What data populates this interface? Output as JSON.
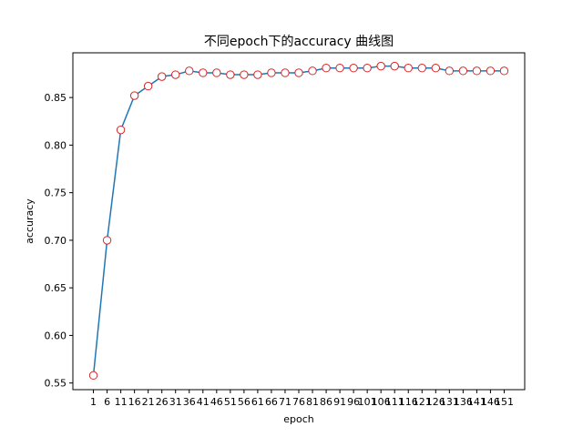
{
  "chart_data": {
    "type": "line",
    "title": "不同epoch下的accuracy 曲线图",
    "xlabel": "epoch",
    "ylabel": "accuracy",
    "x": [
      1,
      6,
      11,
      16,
      21,
      26,
      31,
      36,
      41,
      46,
      51,
      56,
      61,
      66,
      71,
      76,
      81,
      86,
      91,
      96,
      101,
      106,
      111,
      116,
      121,
      126,
      131,
      136,
      141,
      146,
      151
    ],
    "x_tick_labels": [
      "1",
      "6",
      "11",
      "16",
      "21",
      "26",
      "31",
      "36",
      "41",
      "46",
      "51",
      "56",
      "61",
      "66",
      "71",
      "76",
      "81",
      "86",
      "91",
      "96",
      "101",
      "106",
      "111",
      "116",
      "121",
      "126",
      "131",
      "136",
      "141",
      "146",
      "151"
    ],
    "series": [
      {
        "values": [
          0.558,
          0.7,
          0.816,
          0.852,
          0.862,
          0.872,
          0.874,
          0.878,
          0.876,
          0.876,
          0.874,
          0.874,
          0.874,
          0.876,
          0.876,
          0.876,
          0.878,
          0.881,
          0.881,
          0.881,
          0.881,
          0.883,
          0.883,
          0.881,
          0.881,
          0.881,
          0.878,
          0.878,
          0.878,
          0.878,
          0.878
        ]
      }
    ],
    "ylim": [
      0.543,
      0.897
    ],
    "y_ticks": [
      0.55,
      0.6,
      0.65,
      0.7,
      0.75,
      0.8,
      0.85
    ],
    "y_tick_labels": [
      "0.55",
      "0.60",
      "0.65",
      "0.70",
      "0.75",
      "0.80",
      "0.85"
    ],
    "grid": false,
    "colors": {
      "line": "#1f77b4",
      "marker_edge": "#d62728",
      "marker_face": "#ffffff"
    }
  }
}
